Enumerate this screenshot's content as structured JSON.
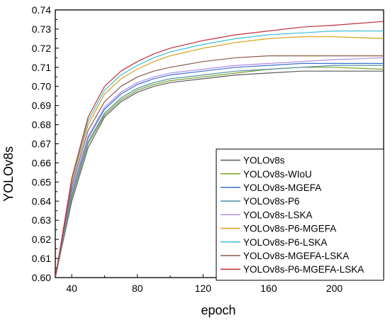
{
  "chart_data": {
    "type": "line",
    "title": "",
    "xlabel": "epoch",
    "ylabel": "YOLOv8s",
    "xlim": [
      30,
      230
    ],
    "ylim": [
      0.6,
      0.74
    ],
    "xticks": [
      40,
      80,
      120,
      160,
      200
    ],
    "xtick_labels": [
      "40",
      "80",
      "120",
      "160",
      "200"
    ],
    "yticks": [
      0.6,
      0.61,
      0.62,
      0.63,
      0.64,
      0.65,
      0.66,
      0.67,
      0.68,
      0.69,
      0.7,
      0.71,
      0.72,
      0.73,
      0.74
    ],
    "ytick_labels": [
      "0.60",
      "0.61",
      "0.62",
      "0.63",
      "0.64",
      "0.65",
      "0.66",
      "0.67",
      "0.68",
      "0.69",
      "0.70",
      "0.71",
      "0.72",
      "0.73",
      "0.74"
    ],
    "grid": false,
    "legend_position": "bottom-right",
    "x": [
      30,
      40,
      50,
      60,
      70,
      80,
      90,
      100,
      120,
      140,
      160,
      180,
      200,
      230
    ],
    "series": [
      {
        "name": "YOLOv8s",
        "color": "#5a5a5a",
        "values": [
          0.6,
          0.64,
          0.668,
          0.684,
          0.692,
          0.697,
          0.7,
          0.702,
          0.704,
          0.706,
          0.707,
          0.708,
          0.708,
          0.708
        ]
      },
      {
        "name": "YOLOv8s-WIoU",
        "color": "#7aa02c",
        "values": [
          0.6,
          0.642,
          0.67,
          0.685,
          0.693,
          0.698,
          0.701,
          0.703,
          0.705,
          0.707,
          0.709,
          0.71,
          0.71,
          0.709
        ]
      },
      {
        "name": "YOLOv8s-MGEFA",
        "color": "#3f6fd0",
        "values": [
          0.6,
          0.645,
          0.673,
          0.688,
          0.696,
          0.701,
          0.704,
          0.706,
          0.708,
          0.71,
          0.711,
          0.712,
          0.712,
          0.712
        ]
      },
      {
        "name": "YOLOv8s-P6",
        "color": "#4f8fa8",
        "values": [
          0.6,
          0.643,
          0.671,
          0.686,
          0.694,
          0.699,
          0.702,
          0.704,
          0.706,
          0.708,
          0.709,
          0.71,
          0.711,
          0.711
        ]
      },
      {
        "name": "YOLOv8s-LSKA",
        "color": "#b48be0",
        "values": [
          0.6,
          0.646,
          0.674,
          0.689,
          0.697,
          0.702,
          0.705,
          0.707,
          0.709,
          0.711,
          0.712,
          0.713,
          0.714,
          0.715
        ]
      },
      {
        "name": "YOLOv8s-P6-MGEFA",
        "color": "#d4a017",
        "values": [
          0.6,
          0.65,
          0.68,
          0.696,
          0.704,
          0.709,
          0.713,
          0.716,
          0.72,
          0.723,
          0.725,
          0.726,
          0.726,
          0.725
        ]
      },
      {
        "name": "YOLOv8s-P6-LSKA",
        "color": "#3fc0d8",
        "values": [
          0.6,
          0.651,
          0.682,
          0.698,
          0.706,
          0.711,
          0.715,
          0.718,
          0.722,
          0.725,
          0.727,
          0.728,
          0.729,
          0.729
        ]
      },
      {
        "name": "YOLOv8s-MGEFA-LSKA",
        "color": "#8b5a4a",
        "values": [
          0.6,
          0.648,
          0.677,
          0.692,
          0.7,
          0.705,
          0.708,
          0.71,
          0.713,
          0.715,
          0.716,
          0.716,
          0.716,
          0.716
        ]
      },
      {
        "name": "YOLOv8s-P6-MGEFA-LSKA",
        "color": "#c0303a",
        "values": [
          0.6,
          0.652,
          0.684,
          0.7,
          0.708,
          0.713,
          0.717,
          0.72,
          0.724,
          0.727,
          0.729,
          0.731,
          0.732,
          0.734
        ]
      }
    ]
  }
}
